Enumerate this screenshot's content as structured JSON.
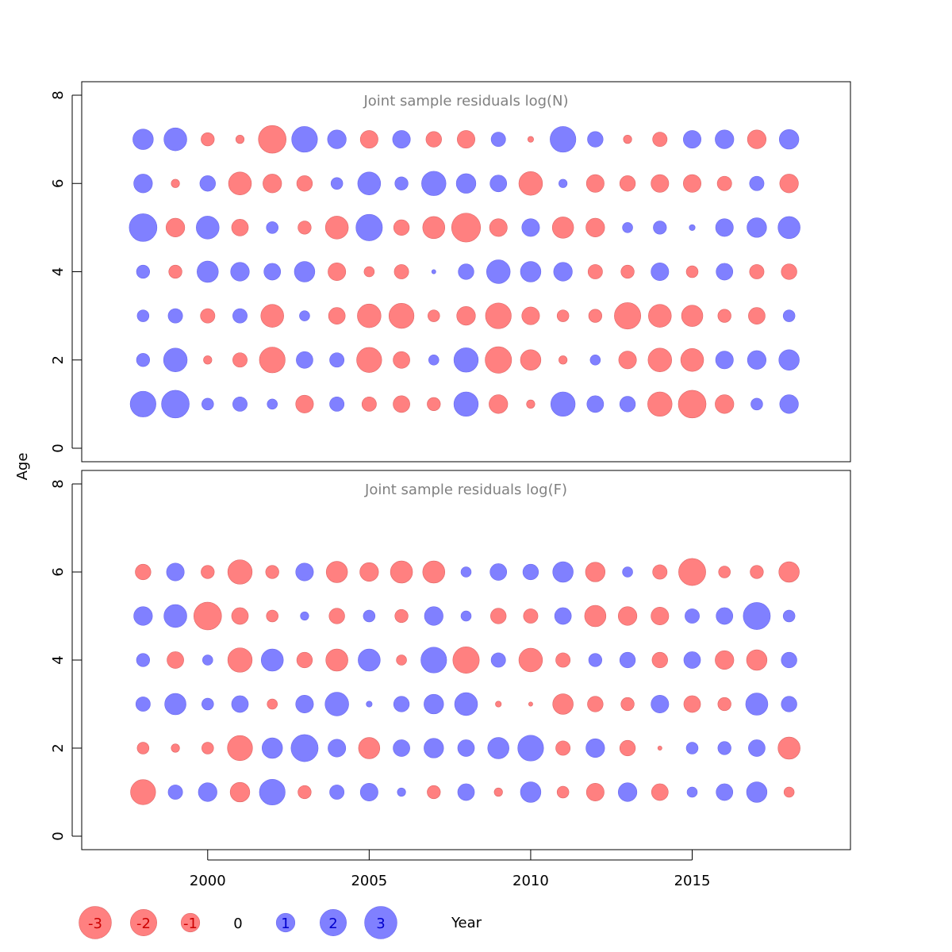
{
  "chart_data": {
    "type": "scatter",
    "subtype": "bubble",
    "ylabel": "Age",
    "xlabel": "Year",
    "x": [
      1998,
      1999,
      2000,
      2001,
      2002,
      2003,
      2004,
      2005,
      2006,
      2007,
      2008,
      2009,
      2010,
      2011,
      2012,
      2013,
      2014,
      2015,
      2016,
      2017,
      2018
    ],
    "x_ticks": [
      2000,
      2005,
      2010,
      2015
    ],
    "y_ticks": [
      0,
      2,
      4,
      6,
      8
    ],
    "ylim": [
      0,
      8
    ],
    "xlim": [
      1996.1,
      2019.9
    ],
    "colors": {
      "negative": "#ff8080",
      "positive": "#8080ff",
      "negative_text": "#cc0000",
      "positive_text": "#0000cc"
    },
    "legend": {
      "placement": "bottom-left",
      "entries": [
        {
          "label": "-3",
          "value": -3
        },
        {
          "label": "-2",
          "value": -2
        },
        {
          "label": "-1",
          "value": -1
        },
        {
          "label": "0",
          "value": 0
        },
        {
          "label": "1",
          "value": 1
        },
        {
          "label": "2",
          "value": 2
        },
        {
          "label": "3",
          "value": 3
        }
      ]
    },
    "panels": [
      {
        "title": "Joint sample residuals log(N)",
        "ages": [
          1,
          2,
          3,
          4,
          5,
          6,
          7
        ],
        "residuals": [
          [
            1.9,
            2.2,
            0.4,
            0.6,
            0.3,
            -0.9,
            0.6,
            -0.6,
            -0.8,
            -0.5,
            1.7,
            -1.0,
            -0.2,
            1.7,
            0.8,
            0.7,
            -1.7,
            -2.2,
            -1.0,
            0.4,
            1.0
          ],
          [
            0.5,
            1.6,
            -0.2,
            -0.6,
            -1.9,
            0.8,
            0.6,
            -1.8,
            -0.8,
            0.3,
            1.7,
            -2.0,
            -1.2,
            -0.2,
            0.3,
            -0.9,
            -1.6,
            -1.5,
            0.9,
            1.0,
            1.2
          ],
          [
            0.4,
            0.6,
            -0.6,
            0.6,
            -1.5,
            0.3,
            -0.8,
            -1.6,
            -1.8,
            -0.4,
            -1.0,
            -1.9,
            -0.9,
            -0.4,
            -0.5,
            -2.0,
            -1.5,
            -1.3,
            -0.5,
            -0.8,
            0.4
          ],
          [
            0.5,
            -0.5,
            1.3,
            1.0,
            0.8,
            1.2,
            -0.9,
            -0.3,
            -0.6,
            0.05,
            0.7,
            1.6,
            1.2,
            1.0,
            -0.6,
            -0.5,
            0.9,
            -0.4,
            0.8,
            -0.6,
            -0.7
          ],
          [
            2.2,
            -1.0,
            1.5,
            -0.8,
            0.4,
            -0.5,
            -1.5,
            2.0,
            -0.7,
            -1.4,
            -2.4,
            -0.9,
            0.9,
            -1.3,
            -1.0,
            0.3,
            0.5,
            0.1,
            0.9,
            1.1,
            1.4
          ],
          [
            1.0,
            -0.2,
            0.7,
            -1.5,
            -1.0,
            -0.7,
            0.4,
            1.5,
            0.5,
            1.7,
            1.1,
            0.8,
            -1.6,
            0.2,
            -0.9,
            -0.7,
            -0.9,
            -0.9,
            -0.6,
            0.6,
            -1.0
          ],
          [
            1.2,
            1.5,
            -0.5,
            -0.2,
            -2.2,
            1.9,
            1.0,
            -0.9,
            0.9,
            -0.7,
            -0.9,
            0.6,
            -0.1,
            1.9,
            0.7,
            -0.2,
            -0.6,
            0.9,
            1.0,
            -1.0,
            1.1
          ]
        ]
      },
      {
        "title": "Joint sample residuals log(F)",
        "ages": [
          1,
          2,
          3,
          4,
          5,
          6
        ],
        "residuals": [
          [
            -1.8,
            0.6,
            1.0,
            -1.1,
            1.9,
            -0.5,
            0.6,
            0.9,
            0.2,
            -0.5,
            0.8,
            -0.2,
            1.2,
            -0.4,
            -0.9,
            1.0,
            -0.8,
            0.3,
            0.8,
            1.2,
            -0.3
          ],
          [
            -0.4,
            -0.2,
            -0.4,
            -1.8,
            1.2,
            2.1,
            0.9,
            -1.3,
            0.8,
            1.1,
            0.8,
            1.3,
            1.9,
            -0.6,
            1.0,
            -0.7,
            -0.05,
            0.4,
            0.5,
            0.8,
            -1.4
          ],
          [
            0.6,
            1.3,
            0.4,
            0.8,
            -0.3,
            0.9,
            1.6,
            0.1,
            0.7,
            1.1,
            1.5,
            -0.1,
            -0.05,
            -1.2,
            -0.7,
            -0.5,
            0.9,
            -0.8,
            -0.5,
            1.4,
            0.7
          ],
          [
            0.5,
            -0.8,
            0.3,
            -1.7,
            1.4,
            -0.7,
            -1.4,
            1.4,
            -0.3,
            1.9,
            -2.0,
            0.6,
            -1.6,
            -0.6,
            0.5,
            0.7,
            -0.7,
            0.8,
            -1.0,
            -1.2,
            0.7
          ],
          [
            1.0,
            1.5,
            -2.2,
            -0.8,
            -0.4,
            0.2,
            -0.7,
            0.4,
            -0.5,
            1.0,
            0.3,
            -0.7,
            -0.6,
            0.8,
            -1.3,
            -1.0,
            -0.9,
            0.6,
            0.8,
            2.1,
            0.4
          ],
          [
            -0.7,
            0.9,
            -0.5,
            -1.7,
            -0.5,
            0.9,
            -1.3,
            -1.0,
            -1.4,
            -1.4,
            0.3,
            0.8,
            0.7,
            1.2,
            -1.1,
            0.3,
            -0.6,
            -2.1,
            -0.4,
            -0.5,
            -1.2
          ]
        ]
      }
    ]
  }
}
